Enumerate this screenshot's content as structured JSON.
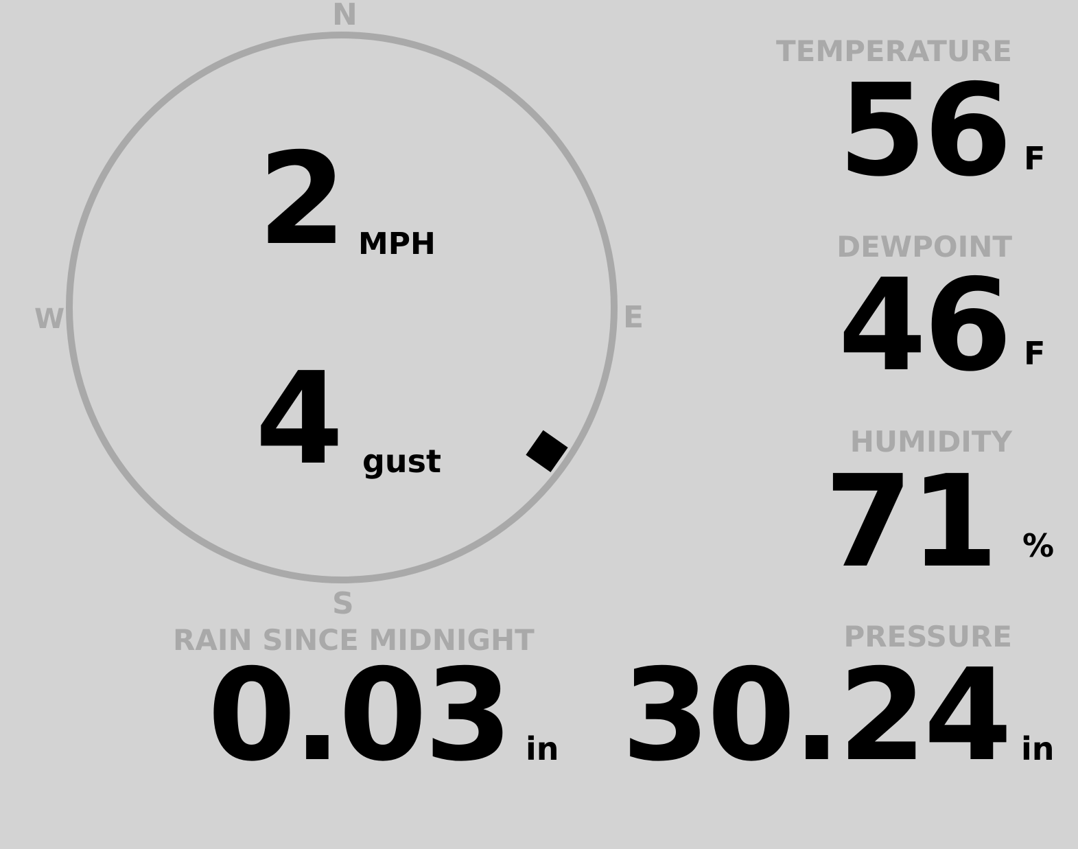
{
  "compass": {
    "north": "N",
    "south": "S",
    "east": "E",
    "west": "W",
    "wind_direction_deg": 125,
    "ring_color": "#a9a9a9",
    "marker_color": "#000000"
  },
  "wind": {
    "speed": "2",
    "speed_unit": "MPH",
    "gust": "4",
    "gust_unit": "gust"
  },
  "temperature": {
    "label": "TEMPERATURE",
    "value": "56",
    "unit": "F"
  },
  "dewpoint": {
    "label": "DEWPOINT",
    "value": "46",
    "unit": "F"
  },
  "humidity": {
    "label": "HUMIDITY",
    "value": "71",
    "unit": "%"
  },
  "rain": {
    "label": "RAIN SINCE MIDNIGHT",
    "value": "0.03",
    "unit": "in"
  },
  "pressure": {
    "label": "PRESSURE",
    "value": "30.24",
    "unit": "in"
  }
}
